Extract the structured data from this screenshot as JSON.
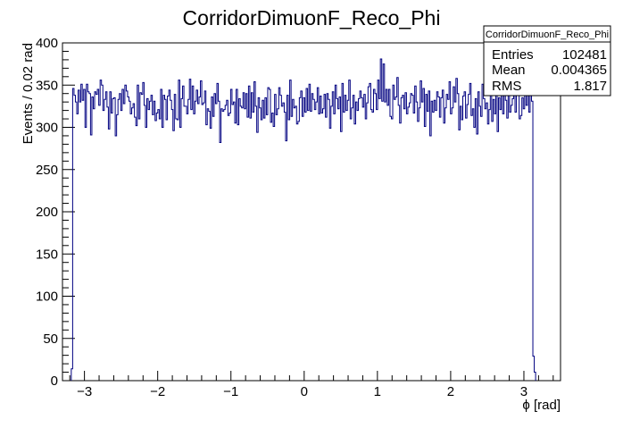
{
  "chart_data": {
    "type": "histogram",
    "title": "CorridorDimuonF_Reco_Phi",
    "xlabel": "ϕ [rad]",
    "ylabel": "Events / 0.02 rad",
    "xlim": [
      -3.3,
      3.5
    ],
    "ylim": [
      0,
      400
    ],
    "bin_width": 0.02,
    "line_color": "#000080",
    "x_ticks": [
      -3,
      -2,
      -1,
      0,
      1,
      2,
      3
    ],
    "y_ticks": [
      0,
      50,
      100,
      150,
      200,
      250,
      300,
      350,
      400
    ],
    "bin_start": -3.18,
    "bin_end": 3.16,
    "values": [
      14,
      346,
      338,
      330,
      316,
      344,
      330,
      351,
      332,
      345,
      300,
      351,
      342,
      340,
      291,
      336,
      322,
      342,
      339,
      345,
      326,
      356,
      350,
      320,
      333,
      342,
      324,
      298,
      342,
      317,
      334,
      335,
      290,
      315,
      333,
      340,
      320,
      345,
      328,
      350,
      343,
      336,
      331,
      316,
      323,
      328,
      312,
      302,
      350,
      310,
      341,
      339,
      353,
      326,
      300,
      334,
      321,
      331,
      338,
      315,
      331,
      308,
      317,
      321,
      310,
      345,
      300,
      338,
      333,
      309,
      337,
      344,
      332,
      321,
      296,
      339,
      310,
      309,
      356,
      300,
      334,
      349,
      325,
      325,
      316,
      333,
      357,
      321,
      349,
      316,
      331,
      344,
      328,
      336,
      355,
      327,
      329,
      343,
      303,
      322,
      319,
      299,
      336,
      313,
      340,
      328,
      352,
      331,
      282,
      322,
      319,
      321,
      326,
      332,
      314,
      317,
      345,
      327,
      330,
      305,
      345,
      303,
      334,
      325,
      323,
      341,
      322,
      340,
      312,
      349,
      311,
      341,
      318,
      354,
      325,
      294,
      335,
      323,
      309,
      332,
      311,
      335,
      315,
      347,
      345,
      306,
      317,
      301,
      339,
      315,
      322,
      347,
      338,
      325,
      329,
      318,
      284,
      338,
      309,
      356,
      313,
      333,
      323,
      325,
      304,
      307,
      335,
      343,
      313,
      335,
      318,
      346,
      320,
      351,
      319,
      340,
      333,
      321,
      330,
      347,
      316,
      337,
      317,
      322,
      339,
      312,
      340,
      333,
      299,
      325,
      342,
      316,
      350,
      334,
      322,
      336,
      295,
      352,
      318,
      338,
      320,
      332,
      356,
      310,
      323,
      338,
      304,
      330,
      320,
      334,
      343,
      335,
      324,
      339,
      310,
      329,
      348,
      352,
      321,
      318,
      345,
      340,
      321,
      356,
      334,
      381,
      331,
      375,
      330,
      345,
      326,
      345,
      313,
      310,
      350,
      333,
      336,
      359,
      326,
      305,
      335,
      338,
      322,
      341,
      316,
      324,
      329,
      340,
      338,
      317,
      349,
      330,
      307,
      323,
      355,
      330,
      346,
      301,
      339,
      319,
      343,
      290,
      331,
      318,
      332,
      320,
      342,
      336,
      312,
      335,
      344,
      305,
      323,
      339,
      333,
      354,
      316,
      323,
      348,
      330,
      358,
      340,
      297,
      325,
      309,
      337,
      342,
      311,
      327,
      339,
      352,
      314,
      322,
      300,
      334,
      292,
      342,
      325,
      313,
      351,
      334,
      322,
      329,
      304,
      321,
      340,
      307,
      333,
      316,
      340,
      295,
      335,
      321,
      354,
      316,
      340,
      332,
      311,
      350,
      318,
      326,
      334,
      340,
      318,
      359,
      345,
      310,
      314,
      335,
      322,
      347,
      326,
      345,
      318,
      340,
      331,
      29,
      10
    ]
  },
  "stats_box": {
    "title": "CorridorDimuonF_Reco_Phi",
    "rows": [
      {
        "label": "Entries",
        "value": "102481"
      },
      {
        "label": "Mean",
        "value": "0.004365"
      },
      {
        "label": "RMS",
        "value": "1.817"
      }
    ]
  }
}
